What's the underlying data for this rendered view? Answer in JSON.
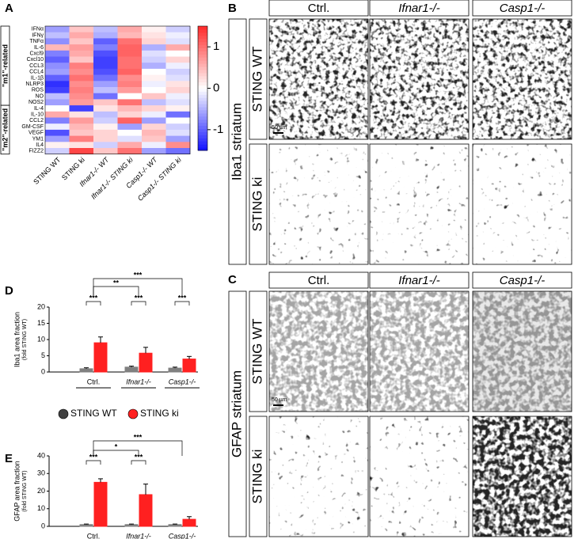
{
  "panel_labels": [
    "A",
    "B",
    "C",
    "D",
    "E"
  ],
  "micrographs": [
    {
      "columns": [
        "Ctrl.",
        "Ifnar1-/-",
        "Casp1-/-"
      ],
      "rows": [
        "STING WT",
        "STING ki"
      ],
      "region": "Iba1 striatum",
      "scale_bar": "50 µm"
    },
    {
      "columns": [
        "Ctrl.",
        "Ifnar1-/-",
        "Casp1-/-"
      ],
      "rows": [
        "STING WT",
        "STING ki"
      ],
      "region": "GFAP striatum",
      "scale_bar": "50 µm"
    }
  ],
  "chart_data": [
    {
      "type": "heatmap",
      "groups": [
        "\"m1\"-related",
        "\"m2\"-related"
      ],
      "rows": [
        "IFNα",
        "IFNγ",
        "TNFα",
        "IL-6",
        "Cxcl9",
        "Cxcl10",
        "CCL3",
        "CCL4",
        "IL-1β",
        "NLRP3",
        "ROS",
        "NO",
        "NOS2",
        "IL-4",
        "IL-10",
        "CCL2",
        "GM-CSF",
        "VEGF",
        "YM1",
        "IL4",
        "FIZZ2"
      ],
      "columns": [
        "STING WT",
        "STING ki",
        "Ifnar1-/- WT",
        "Ifnar1-/- STING ki",
        "Casp1-/- WT",
        "Casp1-/- STING ki"
      ],
      "values": [
        [
          -0.6,
          0.4,
          -0.4,
          0.6,
          0.1,
          -0.3
        ],
        [
          -0.4,
          0.6,
          -0.5,
          0.5,
          0.2,
          -0.1
        ],
        [
          -0.7,
          0.4,
          -1.0,
          1.0,
          0.3,
          -0.2
        ],
        [
          0.5,
          0.7,
          -0.8,
          1.1,
          -0.5,
          0.6
        ],
        [
          -0.8,
          0.6,
          -1.1,
          1.1,
          -0.2,
          0.0
        ],
        [
          -1.0,
          0.4,
          -1.2,
          1.0,
          -0.3,
          0.3
        ],
        [
          -0.7,
          0.9,
          -1.2,
          1.0,
          -0.5,
          -0.1
        ],
        [
          -0.6,
          0.8,
          -1.1,
          1.1,
          0.0,
          -0.3
        ],
        [
          -1.0,
          1.0,
          -0.9,
          0.8,
          0.1,
          -0.2
        ],
        [
          -1.3,
          0.8,
          -0.6,
          0.9,
          -0.1,
          0.2
        ],
        [
          -1.2,
          0.9,
          -0.4,
          0.7,
          0.0,
          0.3
        ],
        [
          -0.4,
          0.8,
          -0.9,
          0.0,
          0.4,
          -0.1
        ],
        [
          -0.6,
          0.7,
          0.4,
          1.0,
          -0.4,
          -0.2
        ],
        [
          0.0,
          -1.2,
          0.2,
          0.5,
          0.3,
          0.1
        ],
        [
          0.6,
          0.2,
          -0.4,
          0.3,
          -0.1,
          -0.9
        ],
        [
          -0.8,
          0.7,
          -0.3,
          1.1,
          -0.6,
          0.0
        ],
        [
          -0.1,
          0.5,
          0.1,
          -0.6,
          0.3,
          -0.3
        ],
        [
          -1.1,
          0.4,
          0.3,
          0.0,
          0.5,
          -0.2
        ],
        [
          -0.6,
          0.9,
          0.3,
          -0.2,
          0.4,
          -0.6
        ],
        [
          0.1,
          0.2,
          -0.3,
          0.6,
          -0.1,
          0.8
        ],
        [
          -0.3,
          1.3,
          0.4,
          1.0,
          -0.6,
          -0.9
        ]
      ],
      "ylim": [
        -1.5,
        1.5
      ],
      "yticks": [
        -1,
        0,
        1
      ],
      "colormap": [
        "#1010ff",
        "#ffffff",
        "#ff2a2a"
      ],
      "m2_label_color": "#2e8b2e"
    },
    {
      "type": "bar",
      "ylabel": [
        "Iba1 area fraction",
        "(fold STING WT)"
      ],
      "categories": [
        "Ctrl.",
        "Ifnar1-/-",
        "Casp1-/-"
      ],
      "series": [
        {
          "name": "STING WT",
          "color": "#808080",
          "values": [
            1.0,
            1.5,
            1.2
          ],
          "errors": [
            0.3,
            0.3,
            0.3
          ]
        },
        {
          "name": "STING ki",
          "color": "#ff2020",
          "values": [
            9.0,
            5.8,
            4.0
          ],
          "errors": [
            1.8,
            1.8,
            0.8
          ]
        }
      ],
      "ylim": [
        0,
        20
      ],
      "yticks": [
        0,
        5,
        10,
        15,
        20
      ],
      "within_group_significance": [
        "***",
        "***",
        "***"
      ],
      "between_group_significance": [
        "**",
        "***"
      ]
    },
    {
      "type": "bar",
      "ylabel": [
        "GFAP area fraction",
        "(fold STING WT)"
      ],
      "categories": [
        "Ctrl.",
        "Ifnar1-/-",
        "Casp1-/-"
      ],
      "series": [
        {
          "color": "#808080",
          "values": [
            1.0,
            1.0,
            1.0
          ],
          "errors": [
            0.3,
            0.3,
            0.3
          ]
        },
        {
          "color": "#ff2020",
          "values": [
            25.0,
            18.0,
            4.0
          ],
          "errors": [
            2.0,
            6.0,
            1.5
          ]
        }
      ],
      "ylim": [
        0,
        40
      ],
      "yticks": [
        0,
        10,
        20,
        30,
        40
      ],
      "within_group_significance": [
        "***",
        "***"
      ],
      "between_group_significance": [
        "*",
        "***"
      ]
    }
  ]
}
